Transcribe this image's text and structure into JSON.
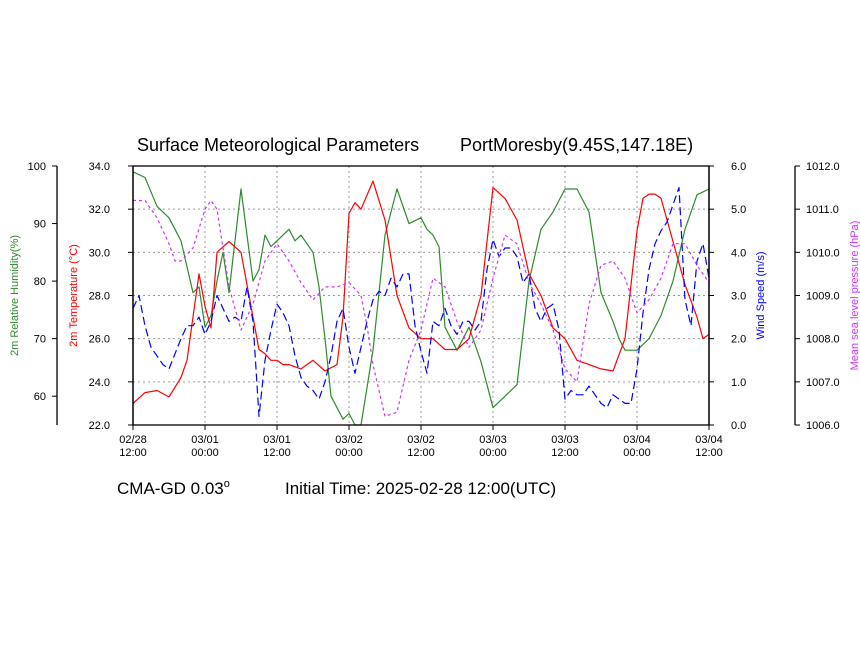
{
  "chart_data": {
    "type": "line",
    "title": "Surface Meteorological Parameters",
    "location": "PortMoresby(9.45S,147.18E)",
    "model": "CMA-GD 0.03",
    "model_suffix": "o",
    "init_time": "Initial Time: 2025-02-28 12:00(UTC)",
    "grid": true,
    "x_ticks": [
      {
        "h": 0,
        "l1": "02/28",
        "l2": "12:00"
      },
      {
        "h": 12,
        "l1": "03/01",
        "l2": "00:00"
      },
      {
        "h": 24,
        "l1": "03/01",
        "l2": "12:00"
      },
      {
        "h": 36,
        "l1": "03/02",
        "l2": "00:00"
      },
      {
        "h": 48,
        "l1": "03/02",
        "l2": "12:00"
      },
      {
        "h": 60,
        "l1": "03/03",
        "l2": "00:00"
      },
      {
        "h": 72,
        "l1": "03/03",
        "l2": "12:00"
      },
      {
        "h": 84,
        "l1": "03/04",
        "l2": "00:00"
      },
      {
        "h": 96,
        "l1": "03/04",
        "l2": "12:00"
      }
    ],
    "xlim": [
      0,
      96
    ],
    "axes": [
      {
        "key": "rh",
        "label": "2m Relative Humidity(%)",
        "color": "#2e8b2e",
        "ylim": [
          55,
          100
        ],
        "ticks": [
          {
            "v": 60,
            "t": "60"
          },
          {
            "v": 70,
            "t": "70"
          },
          {
            "v": 80,
            "t": "80"
          },
          {
            "v": 90,
            "t": "90"
          },
          {
            "v": 100,
            "t": "100"
          }
        ]
      },
      {
        "key": "temp",
        "label": "2m Temperature (°C)",
        "color": "#ff0000",
        "ylim": [
          22,
          34
        ],
        "ticks": [
          {
            "v": 22,
            "t": "22.0"
          },
          {
            "v": 24,
            "t": "24.0"
          },
          {
            "v": 26,
            "t": "26.0"
          },
          {
            "v": 28,
            "t": "28.0"
          },
          {
            "v": 30,
            "t": "30.0"
          },
          {
            "v": 32,
            "t": "32.0"
          },
          {
            "v": 34,
            "t": "34.0"
          }
        ]
      },
      {
        "key": "wind",
        "label": "Wind Speed (m/s)",
        "color": "#0000ff",
        "ylim": [
          0,
          6
        ],
        "ticks": [
          {
            "v": 0,
            "t": "0.0"
          },
          {
            "v": 1,
            "t": "1.0"
          },
          {
            "v": 2,
            "t": "2.0"
          },
          {
            "v": 3,
            "t": "3.0"
          },
          {
            "v": 4,
            "t": "4.0"
          },
          {
            "v": 5,
            "t": "5.0"
          },
          {
            "v": 6,
            "t": "6.0"
          }
        ]
      },
      {
        "key": "mslp",
        "label": "Mean sea level pressure (hPa)",
        "color": "#cc33ff",
        "ylim": [
          1006,
          1012
        ],
        "ticks": [
          {
            "v": 1006,
            "t": "1006.0"
          },
          {
            "v": 1007,
            "t": "1007.0"
          },
          {
            "v": 1008,
            "t": "1008.0"
          },
          {
            "v": 1009,
            "t": "1009.0"
          },
          {
            "v": 1010,
            "t": "1010.0"
          },
          {
            "v": 1011,
            "t": "1011.0"
          },
          {
            "v": 1012,
            "t": "1012.0"
          }
        ]
      }
    ],
    "series": [
      {
        "axis": "rh",
        "color": "#2e8b2e",
        "dash": "",
        "x": [
          0,
          2,
          4,
          6,
          8,
          10,
          11,
          12,
          13,
          14,
          15,
          16,
          18,
          20,
          21,
          22,
          23,
          24,
          26,
          27,
          28,
          30,
          31,
          32,
          33,
          34,
          35,
          36,
          37,
          38,
          40,
          42,
          44,
          46,
          48,
          49,
          50,
          51,
          52,
          54,
          56,
          58,
          59,
          60,
          62,
          64,
          66,
          68,
          70,
          72,
          74,
          76,
          78,
          80,
          81,
          82,
          84,
          86,
          88,
          90,
          92,
          94,
          96
        ],
        "y": [
          99,
          98,
          93,
          91,
          87,
          78,
          79,
          72,
          74,
          80,
          85,
          78,
          96,
          80,
          82,
          88,
          86,
          87,
          89,
          87,
          88,
          85,
          79,
          70,
          60,
          58,
          56,
          57,
          55,
          55,
          68,
          88,
          96,
          90,
          91,
          89,
          88,
          86,
          72,
          68,
          72,
          66,
          62,
          58,
          60,
          62,
          80,
          89,
          92,
          96,
          96,
          92,
          78,
          73,
          70,
          68,
          68,
          70,
          74,
          80,
          89,
          95,
          96
        ]
      },
      {
        "axis": "temp",
        "color": "#ff0000",
        "dash": "",
        "x": [
          0,
          2,
          4,
          6,
          8,
          9,
          10,
          11,
          12,
          13,
          14,
          16,
          18,
          20,
          21,
          22,
          23,
          24,
          25,
          26,
          28,
          30,
          32,
          34,
          35,
          36,
          37,
          38,
          40,
          42,
          44,
          46,
          48,
          50,
          52,
          54,
          56,
          58,
          60,
          62,
          64,
          66,
          68,
          70,
          72,
          74,
          76,
          78,
          80,
          82,
          84,
          85,
          86,
          87,
          88,
          90,
          92,
          94,
          95,
          96
        ],
        "y": [
          23,
          23.5,
          23.6,
          23.3,
          24.2,
          25,
          27,
          29,
          27.5,
          26.5,
          30,
          30.5,
          30,
          27,
          25.5,
          25.3,
          25,
          25,
          24.8,
          24.8,
          24.6,
          25,
          24.5,
          24.8,
          27,
          31.8,
          32.3,
          32,
          33.3,
          31.5,
          28,
          26.5,
          26,
          26,
          25.5,
          25.5,
          26,
          28,
          33,
          32.5,
          31.5,
          29,
          28,
          26.5,
          26,
          25,
          24.8,
          24.6,
          24.5,
          26,
          31,
          32.5,
          32.7,
          32.7,
          32.5,
          30.5,
          28.5,
          27,
          26,
          26.2
        ]
      },
      {
        "axis": "wind",
        "color": "#0000ff",
        "dash": "8,4",
        "x": [
          0,
          1,
          2,
          3,
          4,
          5,
          6,
          8,
          9,
          10,
          11,
          12,
          13,
          14,
          15,
          16,
          17,
          18,
          19,
          20,
          21,
          22,
          23,
          24,
          25,
          26,
          27,
          28,
          29,
          30,
          31,
          32,
          33,
          34,
          35,
          36,
          37,
          38,
          39,
          40,
          41,
          42,
          43,
          44,
          45,
          46,
          47,
          48,
          49,
          50,
          51,
          52,
          53,
          54,
          55,
          56,
          57,
          58,
          59,
          60,
          61,
          62,
          63,
          64,
          65,
          66,
          67,
          68,
          69,
          70,
          71,
          72,
          73,
          74,
          75,
          76,
          77,
          78,
          79,
          80,
          81,
          82,
          83,
          84,
          85,
          86,
          87,
          88,
          89,
          90,
          91,
          92,
          93,
          94,
          95,
          96
        ],
        "y": [
          2.7,
          3,
          2.3,
          1.8,
          1.6,
          1.4,
          1.3,
          2,
          2.3,
          2.3,
          2.5,
          2.1,
          2.4,
          3,
          2.7,
          2.4,
          2.5,
          2.4,
          3.2,
          2.4,
          0.2,
          1.5,
          2.2,
          2.8,
          2.6,
          2.3,
          1.6,
          1.1,
          0.9,
          0.8,
          0.6,
          1,
          1.6,
          2.4,
          2.7,
          1.8,
          1.2,
          1.8,
          2.4,
          2.9,
          3.1,
          3,
          3.4,
          3.2,
          3.5,
          3.5,
          2.3,
          1.7,
          1.2,
          2.4,
          2.3,
          2.7,
          2.3,
          2.1,
          2.4,
          2.4,
          2.2,
          2.4,
          3.6,
          4.3,
          3.9,
          4.1,
          4.1,
          3.9,
          3.3,
          3.5,
          2.7,
          2.4,
          2.7,
          2.8,
          2.2,
          0.6,
          0.8,
          0.7,
          0.7,
          0.9,
          0.7,
          0.5,
          0.4,
          0.7,
          0.6,
          0.5,
          0.5,
          1.3,
          2.6,
          3.6,
          4.2,
          4.5,
          4.7,
          5.1,
          5.5,
          2.9,
          2.3,
          3.8,
          4.2,
          3.4
        ]
      },
      {
        "axis": "mslp",
        "color": "#cc33ff",
        "dash": "3,3",
        "x": [
          0,
          2,
          4,
          6,
          7,
          8,
          10,
          12,
          13,
          14,
          16,
          18,
          20,
          22,
          24,
          26,
          28,
          30,
          32,
          34,
          36,
          38,
          39,
          40,
          42,
          44,
          46,
          48,
          50,
          52,
          54,
          56,
          58,
          60,
          62,
          64,
          66,
          68,
          70,
          72,
          74,
          76,
          78,
          80,
          82,
          84,
          86,
          88,
          90,
          92,
          94,
          96
        ],
        "y": [
          1011.2,
          1011.2,
          1010.8,
          1010.2,
          1009.8,
          1009.8,
          1010.1,
          1011,
          1011.2,
          1011,
          1009.2,
          1008.2,
          1008.8,
          1009.8,
          1010.2,
          1009.8,
          1009.3,
          1008.9,
          1009.2,
          1009.2,
          1009.3,
          1009,
          1008.3,
          1007.4,
          1006.2,
          1006.3,
          1007.5,
          1008.2,
          1009.4,
          1009.2,
          1008.4,
          1007.8,
          1008.2,
          1009.4,
          1010.4,
          1010.2,
          1009.3,
          1008.8,
          1008.2,
          1007.3,
          1007,
          1008.8,
          1009.7,
          1009.8,
          1009.4,
          1008.6,
          1008.9,
          1009.4,
          1010.2,
          1010.2,
          1009.7,
          1009.3
        ]
      }
    ]
  }
}
